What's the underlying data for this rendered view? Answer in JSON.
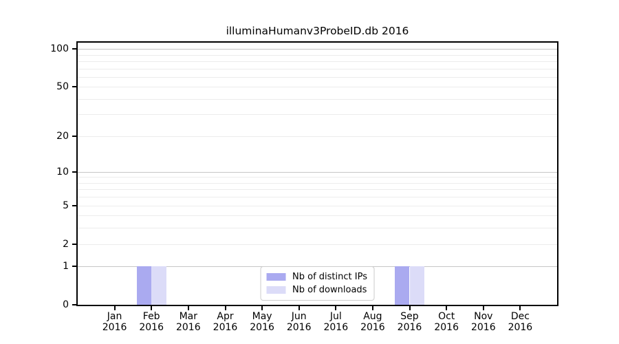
{
  "chart_data": {
    "type": "bar",
    "title": "illuminaHumanv3ProbeID.db 2016",
    "categories": [
      "Jan",
      "Feb",
      "Mar",
      "Apr",
      "May",
      "Jun",
      "Jul",
      "Aug",
      "Sep",
      "Oct",
      "Nov",
      "Dec"
    ],
    "year": "2016",
    "series": [
      {
        "name": "Nb of distinct IPs",
        "color": "#aaaaf0",
        "values": [
          0,
          1,
          0,
          0,
          0,
          0,
          0,
          0,
          1,
          0,
          0,
          0
        ]
      },
      {
        "name": "Nb of downloads",
        "color": "#dcdcf8",
        "values": [
          0,
          1,
          0,
          0,
          0,
          0,
          0,
          0,
          1,
          0,
          0,
          0
        ]
      }
    ],
    "xlabel": "",
    "ylabel": "",
    "y_axis": {
      "scale": "log1p",
      "ticks": [
        0,
        1,
        2,
        5,
        10,
        20,
        50,
        100
      ],
      "max": 112,
      "major_gridlines": [
        1,
        10,
        100
      ],
      "minor_gridlines": [
        2,
        3,
        4,
        5,
        6,
        7,
        8,
        9,
        20,
        30,
        40,
        50,
        60,
        70,
        80,
        90
      ]
    },
    "legend": {
      "position": "lower center"
    },
    "colors": {
      "major_grid": "#c6c6c6",
      "minor_grid": "#ececec",
      "axis": "#000000",
      "background": "#ffffff"
    }
  }
}
